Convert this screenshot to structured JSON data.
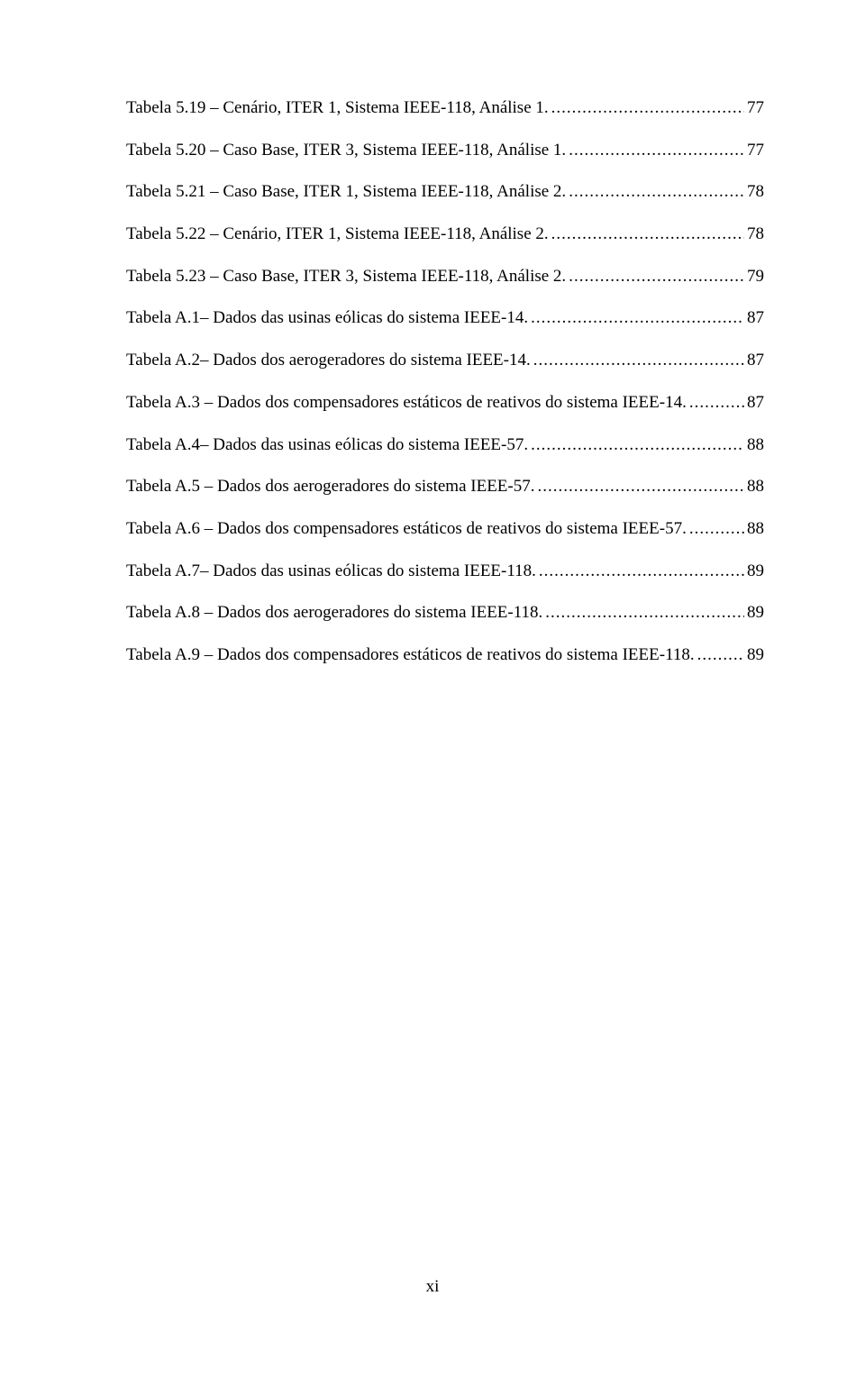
{
  "entries": [
    {
      "label": "Tabela 5.19 – Cenário, ITER 1, Sistema IEEE-118, Análise 1.",
      "page": "77"
    },
    {
      "label": "Tabela 5.20 – Caso Base, ITER 3, Sistema IEEE-118, Análise 1.",
      "page": "77"
    },
    {
      "label": "Tabela 5.21 – Caso Base, ITER 1, Sistema IEEE-118, Análise 2.",
      "page": "78"
    },
    {
      "label": "Tabela 5.22 – Cenário, ITER 1, Sistema IEEE-118, Análise 2.",
      "page": "78"
    },
    {
      "label": "Tabela 5.23 – Caso Base, ITER 3, Sistema IEEE-118, Análise 2.",
      "page": "79"
    },
    {
      "label": "Tabela A.1– Dados das usinas eólicas do sistema IEEE-14.",
      "page": "87"
    },
    {
      "label": "Tabela A.2– Dados dos aerogeradores do sistema IEEE-14. ",
      "page": "87"
    },
    {
      "label": "Tabela A.3 – Dados dos compensadores estáticos de reativos do sistema IEEE-14.",
      "page": "87"
    },
    {
      "label": "Tabela A.4– Dados das usinas eólicas do sistema IEEE-57.",
      "page": "88"
    },
    {
      "label": "Tabela A.5 – Dados dos aerogeradores do sistema IEEE-57. ",
      "page": "88"
    },
    {
      "label": "Tabela A.6 – Dados dos compensadores estáticos de reativos do sistema IEEE-57.",
      "page": "88"
    },
    {
      "label": "Tabela A.7– Dados das usinas eólicas do sistema IEEE-118.",
      "page": "89"
    },
    {
      "label": "Tabela A.8 – Dados dos aerogeradores do sistema IEEE-118. ",
      "page": "89"
    },
    {
      "label": "Tabela A.9 – Dados dos compensadores estáticos de reativos do sistema IEEE-118.",
      "page": "89"
    }
  ],
  "page_number": "xi"
}
